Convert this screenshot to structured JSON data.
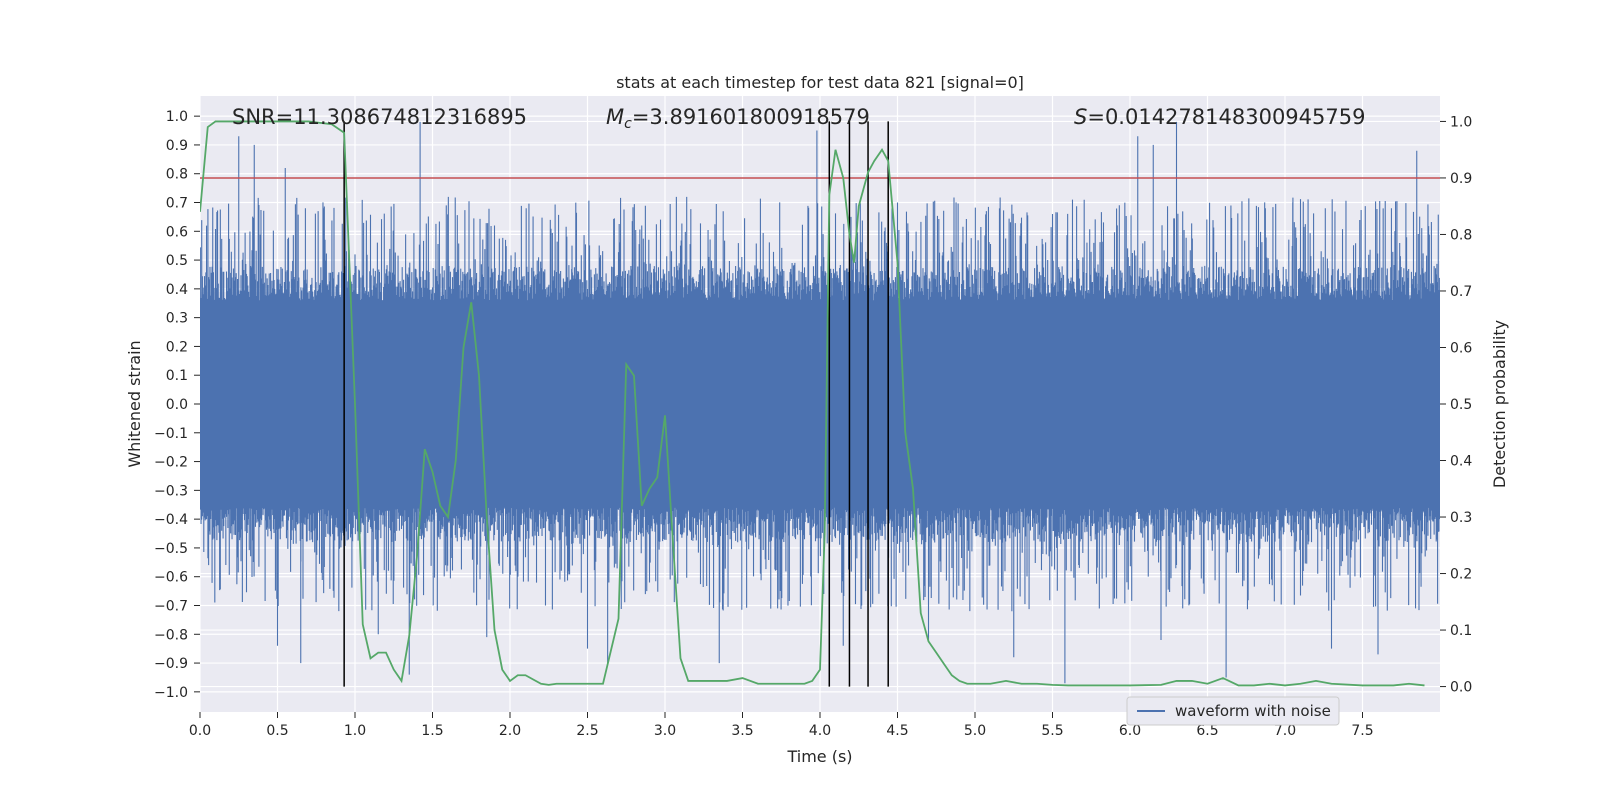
{
  "chart_data": {
    "type": "line",
    "title": "stats at each timestep for test data 821 [signal=0]",
    "xlabel": "Time (s)",
    "ylabel_left": "Whitened strain",
    "ylabel_right": "Detection probability",
    "xlim": [
      0.0,
      8.0
    ],
    "ylim_left": [
      -1.07,
      1.07
    ],
    "ylim_right": [
      -0.045,
      1.045
    ],
    "x_ticks": [
      "0.0",
      "0.5",
      "1.0",
      "1.5",
      "2.0",
      "2.5",
      "3.0",
      "3.5",
      "4.0",
      "4.5",
      "5.0",
      "5.5",
      "6.0",
      "6.5",
      "7.0",
      "7.5"
    ],
    "y_left_ticks": [
      "1.0",
      "0.9",
      "0.8",
      "0.7",
      "0.6",
      "0.5",
      "0.4",
      "0.3",
      "0.2",
      "0.1",
      "0.0",
      "-0.1",
      "-0.2",
      "-0.3",
      "-0.4",
      "-0.5",
      "-0.6",
      "-0.7",
      "-0.8",
      "-0.9",
      "-1.0"
    ],
    "y_right_ticks": [
      "1.0",
      "0.9",
      "0.8",
      "0.7",
      "0.6",
      "0.5",
      "0.4",
      "0.3",
      "0.2",
      "0.1",
      "0.0"
    ],
    "grid": true,
    "annotations": {
      "snr": "SNR=11.308674812316895",
      "mc_symbol": "M",
      "mc_sub": "c",
      "mc_value": "=3.891601800918579",
      "s_symbol": "S",
      "s_value": "=0.014278148300945759"
    },
    "legend": {
      "placement": "lower-right",
      "entries": [
        "waveform with noise"
      ]
    },
    "threshold_line": {
      "axis": "right",
      "value": 0.9,
      "color": "#c44e52"
    },
    "trigger_times": [
      0.93,
      4.06,
      4.19,
      4.31,
      4.44
    ],
    "series": [
      {
        "name": "waveform with noise",
        "axis": "left",
        "color": "#4c72b0",
        "description": "dense noise band, typical envelope ±0.42",
        "spikes_up": [
          [
            0.25,
            0.93
          ],
          [
            0.35,
            0.9
          ],
          [
            0.55,
            0.82
          ],
          [
            0.68,
            0.68
          ],
          [
            1.0,
            0.52
          ],
          [
            1.25,
            0.6
          ],
          [
            1.42,
            0.98
          ],
          [
            1.9,
            0.62
          ],
          [
            2.4,
            0.55
          ],
          [
            2.85,
            0.62
          ],
          [
            3.1,
            0.55
          ],
          [
            3.98,
            0.95
          ],
          [
            4.2,
            0.65
          ],
          [
            4.5,
            0.7
          ],
          [
            5.5,
            0.66
          ],
          [
            6.05,
            0.93
          ],
          [
            6.15,
            0.9
          ],
          [
            6.3,
            0.98
          ],
          [
            7.05,
            0.7
          ],
          [
            7.85,
            0.88
          ]
        ],
        "spikes_down": [
          [
            0.5,
            -0.84
          ],
          [
            0.65,
            -0.9
          ],
          [
            0.93,
            -0.9
          ],
          [
            1.15,
            -0.8
          ],
          [
            1.35,
            -0.94
          ],
          [
            1.85,
            -0.81
          ],
          [
            2.5,
            -0.85
          ],
          [
            2.63,
            -0.9
          ],
          [
            3.35,
            -0.9
          ],
          [
            4.15,
            -0.84
          ],
          [
            4.7,
            -0.82
          ],
          [
            5.25,
            -0.88
          ],
          [
            5.58,
            -0.97
          ],
          [
            6.2,
            -0.82
          ],
          [
            6.62,
            -0.95
          ],
          [
            7.3,
            -0.85
          ],
          [
            7.6,
            -0.87
          ]
        ]
      },
      {
        "name": "",
        "axis": "right",
        "color": "#55a868",
        "x": [
          0.0,
          0.05,
          0.1,
          0.2,
          0.3,
          0.5,
          0.7,
          0.85,
          0.93,
          1.0,
          1.05,
          1.1,
          1.15,
          1.2,
          1.25,
          1.3,
          1.35,
          1.4,
          1.45,
          1.5,
          1.55,
          1.6,
          1.65,
          1.7,
          1.75,
          1.8,
          1.85,
          1.9,
          1.95,
          2.0,
          2.05,
          2.1,
          2.2,
          2.25,
          2.3,
          2.4,
          2.5,
          2.6,
          2.7,
          2.75,
          2.8,
          2.85,
          2.9,
          2.95,
          3.0,
          3.05,
          3.1,
          3.15,
          3.2,
          3.3,
          3.4,
          3.5,
          3.6,
          3.7,
          3.8,
          3.9,
          3.95,
          4.0,
          4.03,
          4.06,
          4.1,
          4.15,
          4.19,
          4.22,
          4.25,
          4.31,
          4.35,
          4.4,
          4.44,
          4.5,
          4.55,
          4.6,
          4.65,
          4.7,
          4.75,
          4.8,
          4.85,
          4.9,
          4.95,
          5.0,
          5.1,
          5.2,
          5.3,
          5.4,
          5.5,
          5.6,
          5.8,
          6.0,
          6.2,
          6.3,
          6.4,
          6.5,
          6.6,
          6.7,
          6.8,
          6.9,
          7.0,
          7.1,
          7.2,
          7.3,
          7.5,
          7.7,
          7.8,
          7.9
        ],
        "y": [
          0.84,
          0.99,
          1.0,
          1.0,
          1.0,
          1.0,
          1.0,
          0.995,
          0.98,
          0.5,
          0.11,
          0.05,
          0.06,
          0.06,
          0.03,
          0.01,
          0.09,
          0.23,
          0.42,
          0.38,
          0.32,
          0.3,
          0.4,
          0.6,
          0.68,
          0.55,
          0.3,
          0.1,
          0.03,
          0.01,
          0.02,
          0.02,
          0.005,
          0.003,
          0.005,
          0.005,
          0.005,
          0.005,
          0.12,
          0.57,
          0.55,
          0.32,
          0.35,
          0.37,
          0.48,
          0.26,
          0.05,
          0.01,
          0.01,
          0.01,
          0.01,
          0.015,
          0.005,
          0.005,
          0.005,
          0.005,
          0.01,
          0.03,
          0.27,
          0.87,
          0.95,
          0.9,
          0.8,
          0.75,
          0.85,
          0.91,
          0.93,
          0.95,
          0.93,
          0.75,
          0.45,
          0.35,
          0.13,
          0.08,
          0.06,
          0.04,
          0.02,
          0.01,
          0.005,
          0.005,
          0.005,
          0.01,
          0.005,
          0.005,
          0.003,
          0.002,
          0.002,
          0.002,
          0.003,
          0.01,
          0.01,
          0.005,
          0.015,
          0.002,
          0.002,
          0.005,
          0.002,
          0.005,
          0.01,
          0.005,
          0.002,
          0.002,
          0.005,
          0.002
        ]
      }
    ]
  }
}
